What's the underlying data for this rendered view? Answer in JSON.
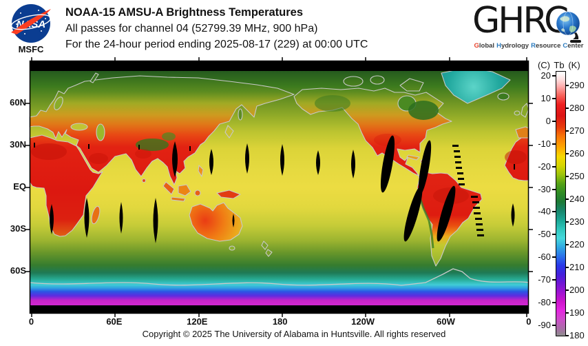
{
  "header": {
    "nasa": {
      "logo_text": "NASA",
      "caption": "MSFC"
    },
    "title_line1": "NOAA-15 AMSU-A Brightness Temperatures",
    "title_line2": "All passes for channel 04 (52799.39 MHz, 900 hPa)",
    "title_line3": "For the 24-hour period ending 2025-08-17 (229) at 00:00 UTC",
    "ghrc": {
      "wordmark": "GHRC",
      "tagline_words": [
        {
          "text": "Global",
          "initial_color": "#e8432d"
        },
        {
          "text": "Hydrology",
          "initial_color": "#2b7bbf"
        },
        {
          "text": "Resource",
          "initial_color": "#2b7bbf"
        },
        {
          "text": "Center",
          "initial_color": "#2b7bbf"
        }
      ]
    }
  },
  "map": {
    "lat_labels": [
      "60N",
      "30N",
      "EQ",
      "30S",
      "60S"
    ],
    "lon_labels": [
      "0",
      "60E",
      "120E",
      "180",
      "120W",
      "60W",
      "0"
    ]
  },
  "colorbar": {
    "header": {
      "c": "(C)",
      "tb": "Tb",
      "k": "(K)"
    },
    "celsius_ticks": [
      20,
      10,
      0,
      -10,
      -20,
      -30,
      -40,
      -50,
      -60,
      -70,
      -80,
      -90
    ],
    "kelvin_ticks": [
      290,
      280,
      270,
      260,
      250,
      240,
      230,
      220,
      210,
      200,
      190,
      180
    ],
    "scale_stops": [
      [
        296,
        "#ffffff"
      ],
      [
        293,
        "#ffe0e0"
      ],
      [
        290,
        "#ffaeae"
      ],
      [
        286,
        "#f8645c"
      ],
      [
        282,
        "#ee2020"
      ],
      [
        277,
        "#dc1414"
      ],
      [
        272,
        "#e83c0c"
      ],
      [
        268,
        "#f87408"
      ],
      [
        263,
        "#ffa800"
      ],
      [
        259,
        "#f5d800"
      ],
      [
        255,
        "#d6d600"
      ],
      [
        251,
        "#9cc40c"
      ],
      [
        247,
        "#55a216"
      ],
      [
        243,
        "#2e8c24"
      ],
      [
        239,
        "#1d7a36"
      ],
      [
        235,
        "#17866c"
      ],
      [
        231,
        "#1ba694"
      ],
      [
        227,
        "#2fc6bc"
      ],
      [
        223,
        "#46d8dc"
      ],
      [
        219,
        "#2fa8e2"
      ],
      [
        215,
        "#2b72ea"
      ],
      [
        211,
        "#2838e8"
      ],
      [
        207,
        "#4420dc"
      ],
      [
        203,
        "#7016d4"
      ],
      [
        199,
        "#a014d2"
      ],
      [
        195,
        "#cc14cc"
      ],
      [
        191,
        "#e426e0"
      ],
      [
        187,
        "#cc4ec8"
      ],
      [
        183,
        "#a86ea6"
      ],
      [
        180,
        "#8e8e8e"
      ]
    ]
  },
  "footer": {
    "copyright": "Copyright © 2025 The University of Alabama in Huntsville.  All rights reserved"
  }
}
